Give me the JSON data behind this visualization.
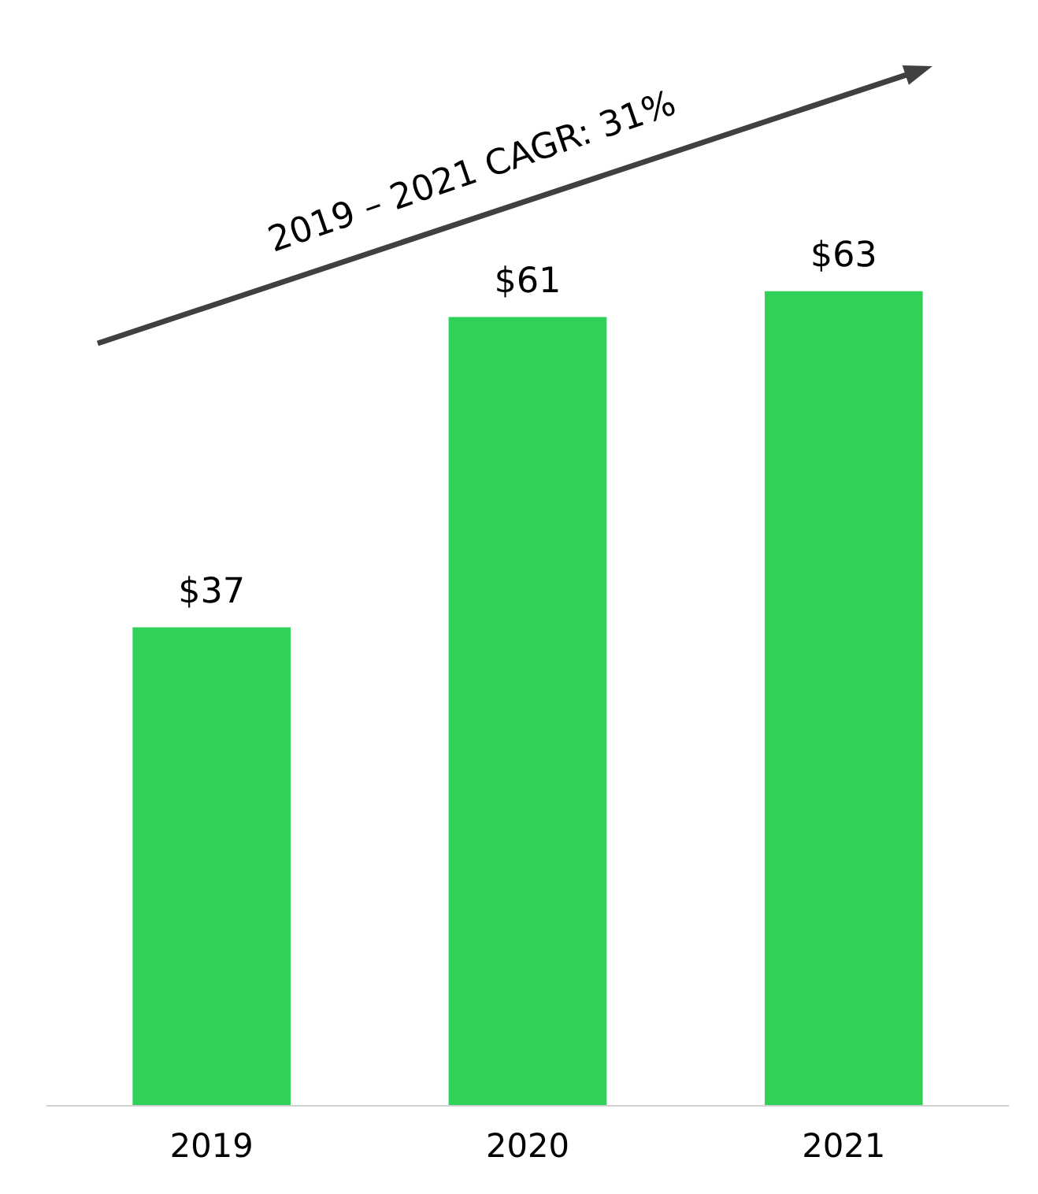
{
  "chart_data": {
    "type": "bar",
    "categories": [
      "2019",
      "2020",
      "2021"
    ],
    "values": [
      37,
      61,
      63
    ],
    "color": "#2fd158",
    "value_labels": [
      "$37",
      "$61",
      "$63"
    ],
    "annotations": [
      "2019 – 2021 CAGR: 31%"
    ],
    "grid": false,
    "legend": false
  }
}
